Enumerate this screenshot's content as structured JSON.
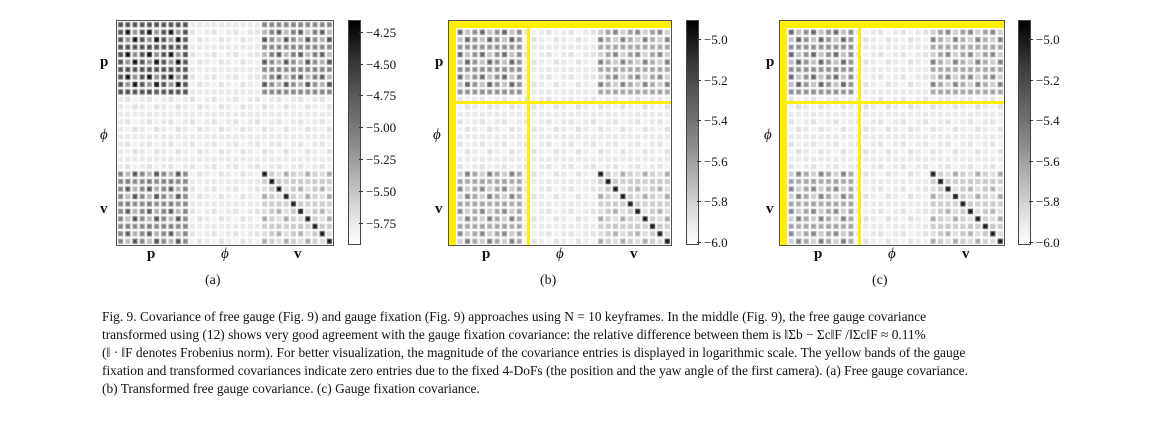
{
  "panels": [
    {
      "id": "a",
      "label": "(a)",
      "axis": {
        "rows": [
          "p",
          "ϕ",
          "v"
        ],
        "cols": [
          "p",
          "ϕ",
          "v"
        ]
      },
      "colorbar": {
        "range": [
          -5.9,
          -4.15
        ],
        "ticks": [
          "−4.25",
          "−4.50",
          "−4.75",
          "−5.00",
          "−5.25",
          "−5.50",
          "−5.75"
        ],
        "tick_values": [
          -4.25,
          -4.5,
          -4.75,
          -5.0,
          -5.25,
          -5.5,
          -5.75
        ]
      },
      "yellow_bands": false
    },
    {
      "id": "b",
      "label": "(b)",
      "axis": {
        "rows": [
          "p",
          "ϕ",
          "v"
        ],
        "cols": [
          "p",
          "ϕ",
          "v"
        ]
      },
      "colorbar": {
        "range": [
          -6.0,
          -4.9
        ],
        "ticks": [
          "−5.0",
          "−5.2",
          "−5.4",
          "−5.6",
          "−5.8",
          "−6.0"
        ],
        "tick_values": [
          -5.0,
          -5.2,
          -5.4,
          -5.6,
          -5.8,
          -6.0
        ]
      },
      "yellow_bands": true
    },
    {
      "id": "c",
      "label": "(c)",
      "axis": {
        "rows": [
          "p",
          "ϕ",
          "v"
        ],
        "cols": [
          "p",
          "ϕ",
          "v"
        ]
      },
      "colorbar": {
        "range": [
          -6.0,
          -4.9
        ],
        "ticks": [
          "−5.0",
          "−5.2",
          "−5.4",
          "−5.6",
          "−5.8",
          "−6.0"
        ],
        "tick_values": [
          -5.0,
          -5.2,
          -5.4,
          -5.6,
          -5.8,
          -6.0
        ]
      },
      "yellow_bands": true
    }
  ],
  "caption": {
    "line1": "Fig. 9.    Covariance of free gauge (Fig. 9) and gauge fixation (Fig. 9) approaches using N = 10 keyframes. In the middle (Fig. 9), the free gauge covariance",
    "line2": "transformed using (12) shows very good agreement with the gauge fixation covariance: the relative difference between them is ‖Σb − Σc‖F /‖Σc‖F ≈ 0.11%",
    "line3": "(‖ · ‖F denotes Frobenius norm). For better visualization, the magnitude of the covariance entries is displayed in logarithmic scale. The yellow bands of the gauge",
    "line4": "fixation and transformed covariances indicate zero entries due to the fixed 4-DoFs (the position and the yaw angle of the first camera). (a) Free gauge covariance.",
    "line5": "(b) Transformed free gauge covariance. (c) Gauge fixation covariance."
  }
}
